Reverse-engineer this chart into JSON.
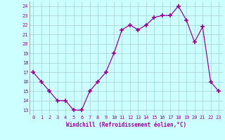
{
  "x": [
    0,
    1,
    2,
    3,
    4,
    5,
    6,
    7,
    8,
    9,
    10,
    11,
    12,
    13,
    14,
    15,
    16,
    17,
    18,
    19,
    20,
    21,
    22,
    23
  ],
  "y": [
    17,
    16,
    15,
    14,
    14,
    13,
    13,
    15,
    16,
    17,
    19,
    21.5,
    22,
    21.5,
    22,
    22.8,
    23,
    23,
    24,
    22.5,
    20.2,
    21.8,
    16,
    15
  ],
  "line_color": "#990099",
  "marker": "+",
  "bg_color": "#ccffff",
  "grid_color": "#aacccc",
  "xlabel": "Windchill (Refroidissement éolien,°C)",
  "xlabel_color": "#990099",
  "yticks": [
    13,
    14,
    15,
    16,
    17,
    18,
    19,
    20,
    21,
    22,
    23,
    24
  ],
  "xticks": [
    0,
    1,
    2,
    3,
    4,
    5,
    6,
    7,
    8,
    9,
    10,
    11,
    12,
    13,
    14,
    15,
    16,
    17,
    18,
    19,
    20,
    21,
    22,
    23
  ],
  "tick_color": "#990099",
  "ylim": [
    12.5,
    24.5
  ],
  "xlim": [
    -0.5,
    23.5
  ]
}
